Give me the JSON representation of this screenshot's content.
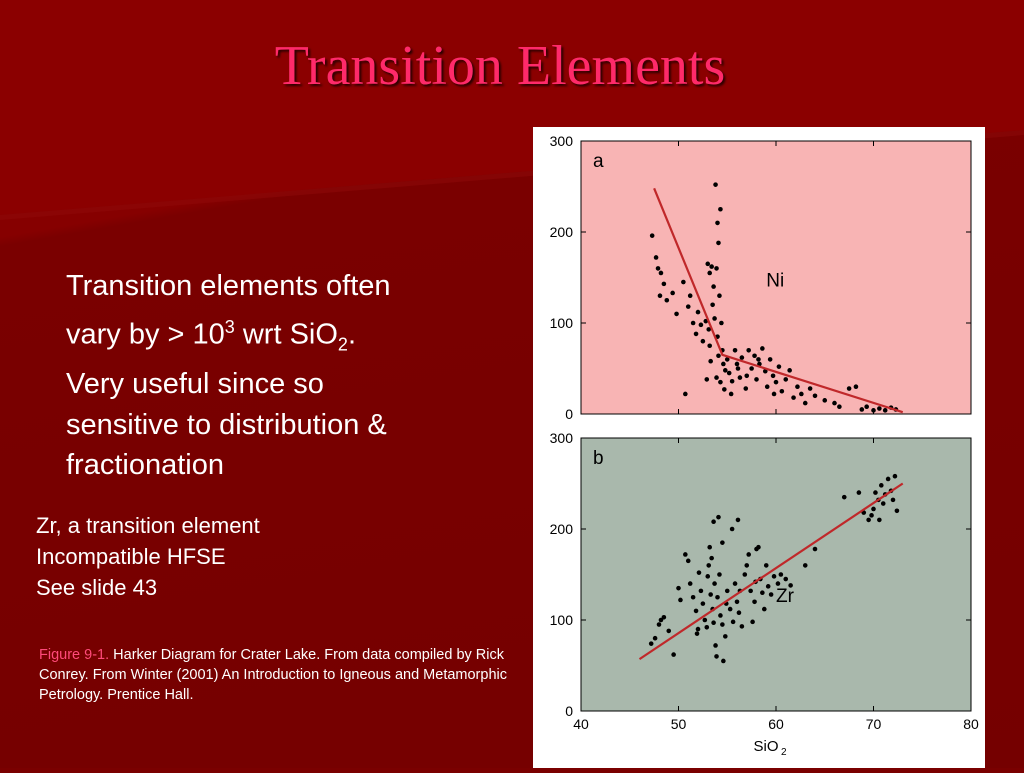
{
  "title": "Transition Elements",
  "main_text": {
    "line1": "Transition elements  often",
    "line2_pre": "vary by > 10",
    "line2_exp": "3",
    "line2_mid": "  wrt SiO",
    "line2_sub": "2",
    "line2_post": ".",
    "line3": "Very useful since so",
    "line4": "sensitive to distribution &",
    "line5": "fractionation"
  },
  "side_text": {
    "line1": "Zr,  a transition element",
    "line2": "Incompatible HFSE",
    "line3": "See slide 43"
  },
  "caption": {
    "figure_label": "Figure 9-1.",
    "text": " Harker Diagram for Crater Lake. From data compiled by Rick Conrey. From Winter (2001) An Introduction to Igneous and Metamorphic Petrology. Prentice Hall."
  },
  "colors": {
    "panel_a_bg": "#f8b4b4",
    "panel_b_bg": "#a9b8ac",
    "trend_line": "#c0282a",
    "points": "#000000",
    "title": "#ff2a6a",
    "caption_label": "#ff4a7a"
  },
  "chart_data": [
    {
      "type": "scatter",
      "panel_label": "a",
      "element_label": "Ni",
      "xlim": [
        40,
        80
      ],
      "ylim": [
        0,
        300
      ],
      "y_ticks": [
        "0",
        "100",
        "200",
        "300"
      ],
      "trend": [
        [
          47.5,
          248
        ],
        [
          54.5,
          65
        ],
        [
          73,
          2
        ]
      ],
      "points": [
        [
          47.3,
          196
        ],
        [
          47.7,
          172
        ],
        [
          47.9,
          160
        ],
        [
          48.2,
          155
        ],
        [
          48.5,
          143
        ],
        [
          48.1,
          130
        ],
        [
          48.8,
          125
        ],
        [
          49.4,
          133
        ],
        [
          49.8,
          110
        ],
        [
          50.5,
          145
        ],
        [
          51.0,
          118
        ],
        [
          51.2,
          130
        ],
        [
          51.5,
          100
        ],
        [
          51.8,
          88
        ],
        [
          52.0,
          112
        ],
        [
          52.3,
          98
        ],
        [
          52.5,
          80
        ],
        [
          52.8,
          102
        ],
        [
          53.0,
          165
        ],
        [
          53.2,
          155
        ],
        [
          53.4,
          162
        ],
        [
          53.6,
          140
        ],
        [
          53.1,
          93
        ],
        [
          53.5,
          120
        ],
        [
          53.7,
          105
        ],
        [
          53.2,
          75
        ],
        [
          53.9,
          160
        ],
        [
          54.0,
          210
        ],
        [
          54.1,
          188
        ],
        [
          54.3,
          225
        ],
        [
          53.8,
          252
        ],
        [
          54.2,
          130
        ],
        [
          54.4,
          100
        ],
        [
          54.0,
          85
        ],
        [
          54.5,
          70
        ],
        [
          54.1,
          64
        ],
        [
          54.6,
          55
        ],
        [
          54.8,
          48
        ],
        [
          55.0,
          60
        ],
        [
          55.2,
          45
        ],
        [
          53.9,
          40
        ],
        [
          54.3,
          35
        ],
        [
          53.3,
          58
        ],
        [
          52.9,
          38
        ],
        [
          54.7,
          27
        ],
        [
          55.4,
          22
        ],
        [
          55.8,
          70
        ],
        [
          56.0,
          55
        ],
        [
          56.3,
          40
        ],
        [
          56.5,
          62
        ],
        [
          56.9,
          28
        ],
        [
          57.2,
          70
        ],
        [
          57.5,
          50
        ],
        [
          57.8,
          64
        ],
        [
          58.0,
          38
        ],
        [
          58.3,
          55
        ],
        [
          58.6,
          72
        ],
        [
          58.9,
          47
        ],
        [
          59.1,
          30
        ],
        [
          59.4,
          60
        ],
        [
          59.7,
          42
        ],
        [
          60.0,
          35
        ],
        [
          60.3,
          52
        ],
        [
          60.6,
          25
        ],
        [
          61.0,
          38
        ],
        [
          61.4,
          48
        ],
        [
          61.8,
          18
        ],
        [
          62.2,
          30
        ],
        [
          62.6,
          22
        ],
        [
          63.0,
          12
        ],
        [
          63.5,
          28
        ],
        [
          64.0,
          20
        ],
        [
          65.0,
          15
        ],
        [
          66.0,
          12
        ],
        [
          66.5,
          8
        ],
        [
          67.5,
          28
        ],
        [
          68.2,
          30
        ],
        [
          68.8,
          5
        ],
        [
          69.3,
          8
        ],
        [
          70.0,
          4
        ],
        [
          70.6,
          6
        ],
        [
          71.2,
          4
        ],
        [
          71.8,
          7
        ],
        [
          72.3,
          5
        ],
        [
          50.7,
          22
        ],
        [
          55.5,
          36
        ],
        [
          56.1,
          50
        ],
        [
          57.0,
          42
        ],
        [
          58.2,
          60
        ],
        [
          59.8,
          22
        ]
      ]
    },
    {
      "type": "scatter",
      "panel_label": "b",
      "element_label": "Zr",
      "xlim": [
        40,
        80
      ],
      "ylim": [
        0,
        300
      ],
      "x_ticks": [
        "40",
        "50",
        "60",
        "70",
        "80"
      ],
      "y_ticks": [
        "0",
        "100",
        "200",
        "300"
      ],
      "xlabel": "SiO",
      "xlabel_sub": "2",
      "trend": [
        [
          46,
          57
        ],
        [
          73,
          250
        ]
      ],
      "points": [
        [
          47.2,
          74
        ],
        [
          47.6,
          80
        ],
        [
          48.0,
          95
        ],
        [
          48.2,
          100
        ],
        [
          48.5,
          103
        ],
        [
          49.5,
          62
        ],
        [
          50.2,
          122
        ],
        [
          50.7,
          172
        ],
        [
          51.0,
          165
        ],
        [
          51.2,
          140
        ],
        [
          51.5,
          125
        ],
        [
          51.8,
          110
        ],
        [
          51.9,
          85
        ],
        [
          52.1,
          152
        ],
        [
          52.3,
          132
        ],
        [
          52.5,
          118
        ],
        [
          52.7,
          100
        ],
        [
          52.9,
          92
        ],
        [
          53.0,
          148
        ],
        [
          53.1,
          160
        ],
        [
          53.3,
          128
        ],
        [
          53.5,
          112
        ],
        [
          53.6,
          97
        ],
        [
          53.8,
          72
        ],
        [
          53.9,
          60
        ],
        [
          53.4,
          168
        ],
        [
          53.7,
          140
        ],
        [
          54.0,
          125
        ],
        [
          54.2,
          150
        ],
        [
          54.3,
          105
        ],
        [
          54.5,
          95
        ],
        [
          54.6,
          55
        ],
        [
          54.8,
          82
        ],
        [
          54.1,
          213
        ],
        [
          54.5,
          185
        ],
        [
          55.0,
          132
        ],
        [
          55.3,
          112
        ],
        [
          55.6,
          98
        ],
        [
          55.8,
          140
        ],
        [
          56.0,
          120
        ],
        [
          56.2,
          108
        ],
        [
          56.5,
          93
        ],
        [
          56.8,
          150
        ],
        [
          57.0,
          160
        ],
        [
          57.2,
          172
        ],
        [
          57.4,
          132
        ],
        [
          57.6,
          98
        ],
        [
          57.8,
          120
        ],
        [
          58.0,
          178
        ],
        [
          58.2,
          180
        ],
        [
          58.4,
          145
        ],
        [
          58.6,
          130
        ],
        [
          58.8,
          112
        ],
        [
          59.0,
          160
        ],
        [
          59.2,
          137
        ],
        [
          59.5,
          128
        ],
        [
          59.8,
          148
        ],
        [
          60.2,
          140
        ],
        [
          60.5,
          150
        ],
        [
          61.0,
          145
        ],
        [
          61.5,
          138
        ],
        [
          55.5,
          200
        ],
        [
          56.1,
          210
        ],
        [
          63.0,
          160
        ],
        [
          64.0,
          178
        ],
        [
          67.0,
          235
        ],
        [
          68.5,
          240
        ],
        [
          69.0,
          218
        ],
        [
          69.5,
          210
        ],
        [
          70.0,
          222
        ],
        [
          70.2,
          240
        ],
        [
          70.5,
          232
        ],
        [
          70.8,
          248
        ],
        [
          71.0,
          228
        ],
        [
          71.2,
          238
        ],
        [
          71.5,
          255
        ],
        [
          71.8,
          242
        ],
        [
          72.0,
          232
        ],
        [
          72.2,
          258
        ],
        [
          72.4,
          220
        ],
        [
          69.8,
          215
        ],
        [
          70.6,
          210
        ],
        [
          52.0,
          90
        ],
        [
          53.2,
          180
        ],
        [
          54.9,
          118
        ],
        [
          56.3,
          132
        ],
        [
          57.9,
          142
        ],
        [
          53.6,
          208
        ],
        [
          50.0,
          135
        ],
        [
          49.0,
          88
        ]
      ]
    }
  ]
}
